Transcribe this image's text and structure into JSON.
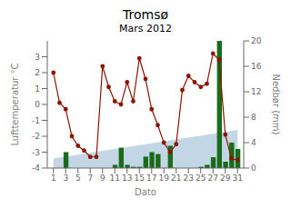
{
  "chart_data": {
    "type": "bar",
    "title": "Tromsø",
    "subtitle": "Mars 2012",
    "xlabel": "Dato",
    "ylabel": "Lufttemperatur °C",
    "y2label": "Nedbør (mm)",
    "x": [
      1,
      2,
      3,
      4,
      5,
      6,
      7,
      8,
      9,
      10,
      11,
      12,
      13,
      14,
      15,
      16,
      17,
      18,
      19,
      20,
      21,
      22,
      23,
      24,
      25,
      26,
      27,
      28,
      29,
      30,
      31
    ],
    "xlim": [
      0.0,
      32.0
    ],
    "xticks": [
      1,
      3,
      5,
      7,
      9,
      11,
      13,
      15,
      17,
      19,
      21,
      23,
      25,
      27,
      29,
      31
    ],
    "ylim": [
      -4.0,
      4.0
    ],
    "yticks": [
      -4.0,
      -3.0,
      -2.0,
      -1.0,
      0.0,
      1.0,
      2.0,
      3.0
    ],
    "y2lim": [
      0.0,
      20.0
    ],
    "y2ticks": [
      0.0,
      4.0,
      8.0,
      12.0,
      16.0,
      20.0
    ],
    "grid": false,
    "series": [
      {
        "type": "area",
        "axis": "y2",
        "color": "#b8cfe0",
        "x": [
          1,
          31
        ],
        "values": [
          1.5,
          6.0
        ]
      },
      {
        "type": "bar",
        "axis": "y2",
        "color": "#1a6b1a",
        "values": [
          0.0,
          0.0,
          2.5,
          0.0,
          0.0,
          0.0,
          0.0,
          0.0,
          0.0,
          0.0,
          0.5,
          3.2,
          0.5,
          0.2,
          0.2,
          1.8,
          2.5,
          2.2,
          0.0,
          3.5,
          0.0,
          0.0,
          0.0,
          0.0,
          0.2,
          0.5,
          1.7,
          20.0,
          1.0,
          4.0,
          3.0
        ]
      },
      {
        "type": "line",
        "color": "#8b1500",
        "marker": "circle",
        "values": [
          2.0,
          0.1,
          -0.3,
          -2.0,
          -2.6,
          -2.9,
          -3.3,
          -3.3,
          2.4,
          1.1,
          0.2,
          0.0,
          1.4,
          0.2,
          2.9,
          1.6,
          -0.3,
          -1.3,
          -2.4,
          -3.0,
          -2.5,
          0.9,
          1.8,
          1.4,
          1.1,
          1.3,
          3.2,
          2.8,
          -1.9,
          -3.4,
          -3.5
        ]
      }
    ]
  }
}
